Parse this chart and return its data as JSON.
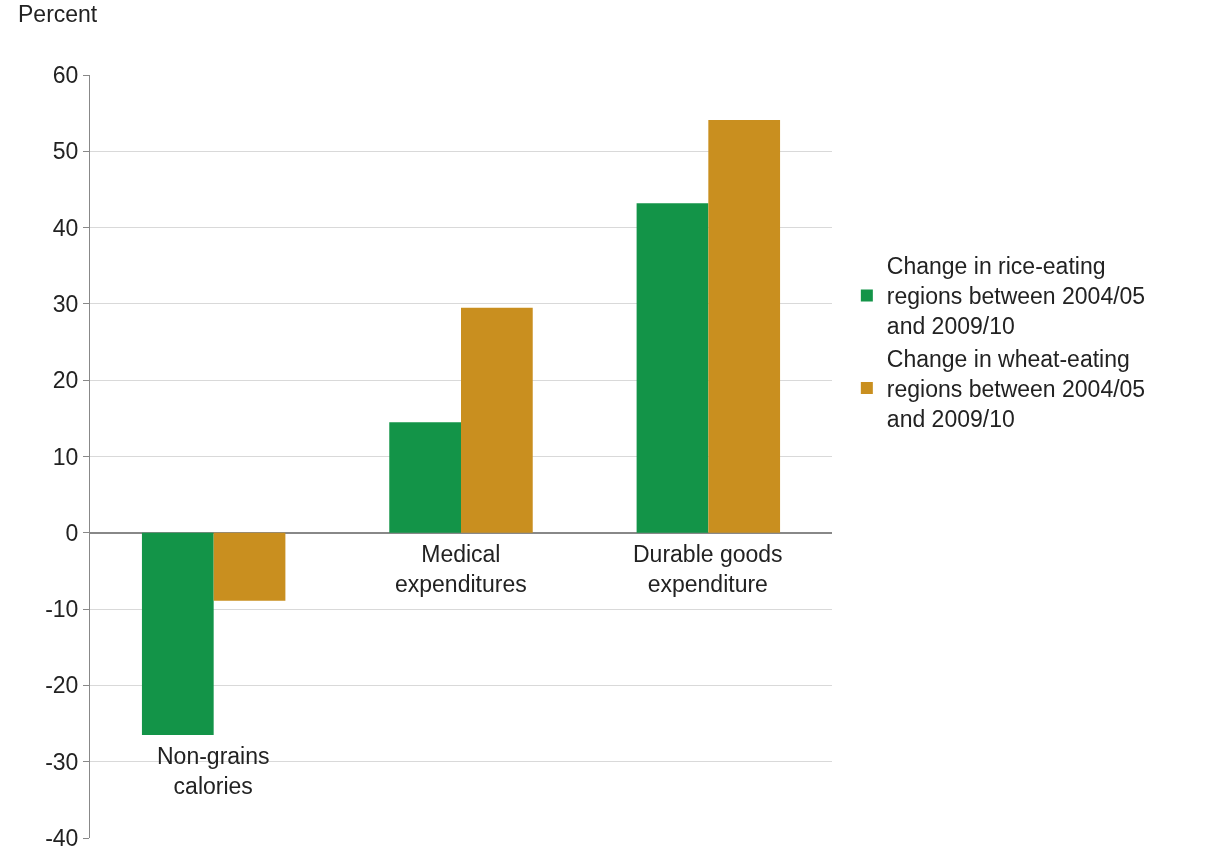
{
  "chart_data": {
    "type": "bar",
    "ylabel": "Percent",
    "categories": [
      "Non-grains calories",
      "Medical expenditures",
      "Durable goods expenditure"
    ],
    "series": [
      {
        "name": "Change in rice-eating regions between 2004/05 and 2009/10",
        "color": "#139448",
        "values": [
          -26.5,
          14.5,
          43.2
        ]
      },
      {
        "name": "Change in wheat-eating regions between 2004/05 and 2009/10",
        "color": "#c98f1f",
        "values": [
          -8.9,
          29.5,
          54.1
        ]
      }
    ],
    "ylim": [
      -40,
      60
    ],
    "yticks": [
      -40,
      -30,
      -20,
      -10,
      0,
      10,
      20,
      30,
      40,
      50,
      60
    ],
    "grid": "y",
    "legend": "right"
  }
}
